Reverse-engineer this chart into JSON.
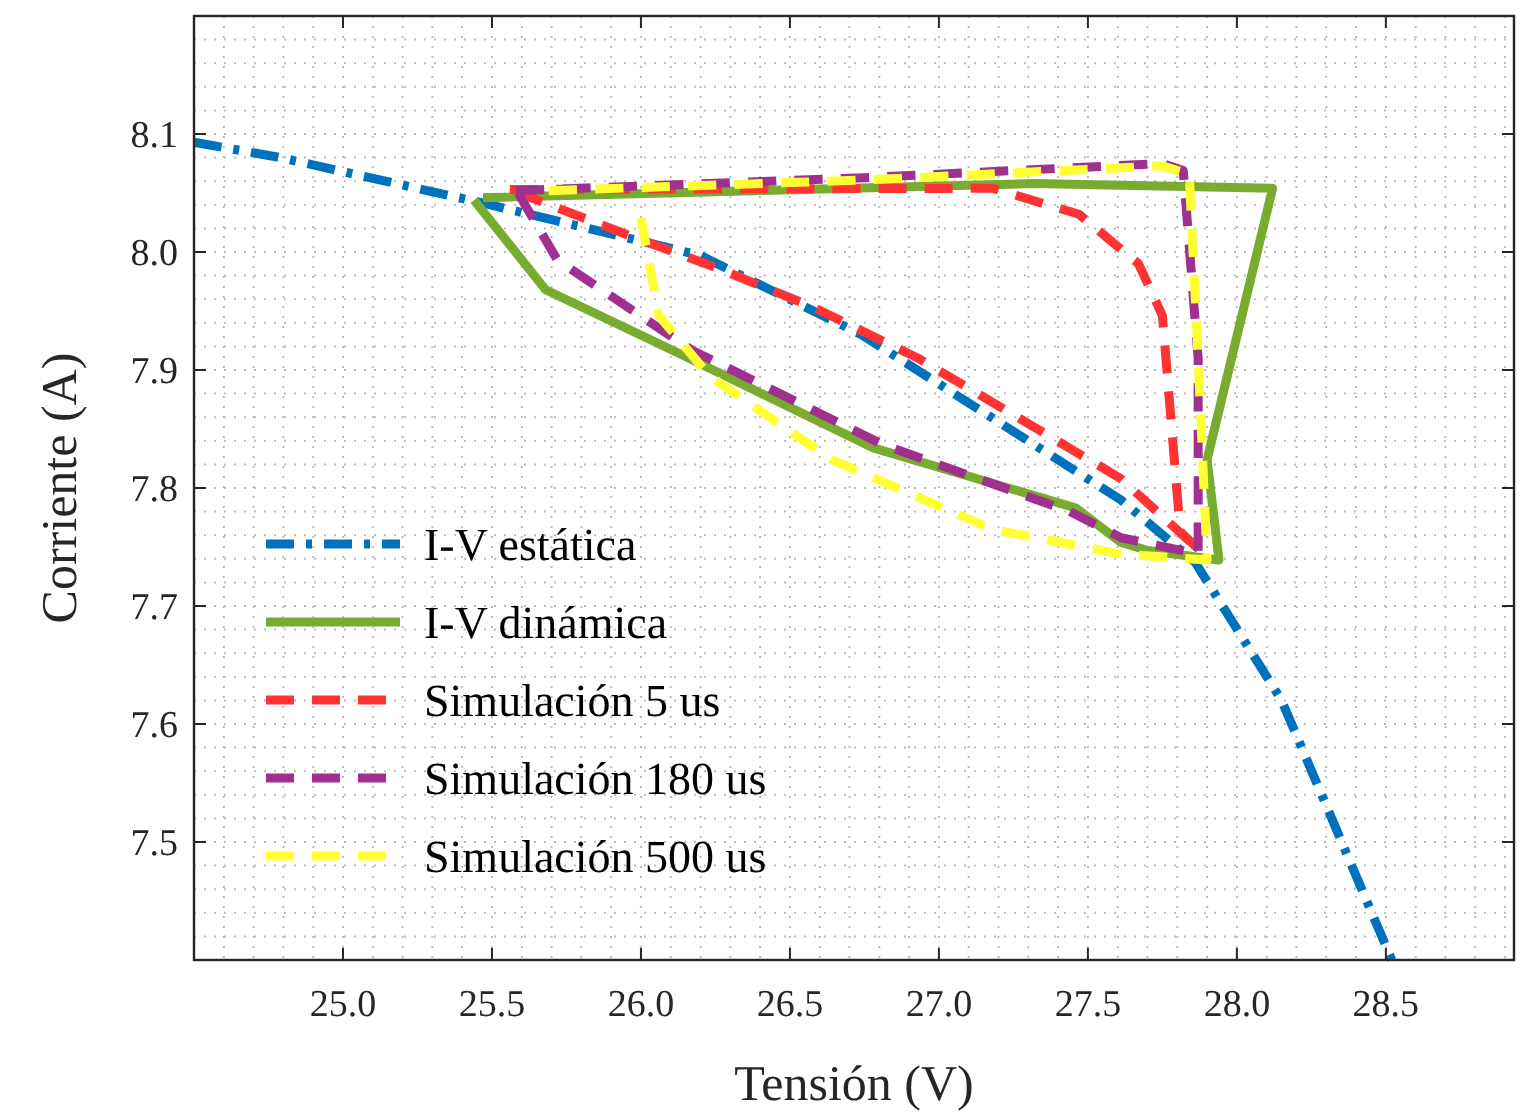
{
  "chart_data": {
    "type": "line",
    "xlabel": "Tensión (V)",
    "ylabel": "Corriente (A)",
    "xlim": [
      24.5,
      28.93
    ],
    "ylim": [
      7.4,
      8.2
    ],
    "xticks": [
      {
        "value": 25,
        "label": "25.0"
      },
      25.5,
      {
        "value": 26,
        "label": "26.0"
      },
      26.5,
      {
        "value": 27,
        "label": "27.0"
      },
      27.5,
      {
        "value": 28,
        "label": "28.0"
      },
      28.5
    ],
    "yticks": [
      7.5,
      7.6,
      7.7,
      7.8,
      7.9,
      {
        "value": 8,
        "label": "8.0"
      },
      8.1
    ],
    "grid": true,
    "legend": "bottom left",
    "series": [
      {
        "name": "I-V estática",
        "color": "#0072bd",
        "line_style": "dashdot",
        "x": [
          24.5,
          24.79,
          25.46,
          26.2,
          26.74,
          27.2,
          27.61,
          27.86,
          28.15,
          28.52
        ],
        "values": [
          8.093,
          8.08,
          8.042,
          7.997,
          7.93,
          7.856,
          7.79,
          7.737,
          7.62,
          7.4
        ]
      },
      {
        "name": "I-V dinámica",
        "color": "#77ac30",
        "line_style": "solid",
        "x": [
          25.44,
          25.68,
          26.12,
          26.78,
          27.46,
          27.61,
          27.7,
          27.94,
          27.9,
          28.12,
          27.32,
          25.47
        ],
        "values": [
          8.044,
          7.968,
          7.915,
          7.834,
          7.783,
          7.754,
          7.747,
          7.739,
          7.824,
          8.054,
          8.058,
          8.046
        ]
      },
      {
        "name": "Simulación 5 us",
        "color": "#ff3333",
        "line_style": "dashed",
        "x": [
          25.56,
          27.18,
          27.47,
          27.67,
          27.75,
          27.81,
          27.88,
          27.61,
          27.27,
          26.93,
          26.58,
          26.26,
          25.95,
          25.58
        ],
        "values": [
          8.053,
          8.054,
          8.032,
          7.99,
          7.946,
          7.763,
          7.746,
          7.808,
          7.859,
          7.91,
          7.953,
          7.986,
          8.015,
          8.051
        ]
      },
      {
        "name": "Simulación 180 us",
        "color": "#a0308f",
        "line_style": "dashed",
        "x": [
          25.59,
          25.72,
          26.17,
          26.81,
          27.44,
          27.61,
          27.87,
          27.87,
          27.82,
          27.75,
          26.75,
          25.58
        ],
        "values": [
          8.049,
          7.993,
          7.917,
          7.837,
          7.78,
          7.758,
          7.744,
          7.91,
          8.069,
          8.075,
          8.063,
          8.052
        ]
      },
      {
        "name": "Simulación 500 us",
        "color": "#ffff33",
        "line_style": "dashed",
        "x": [
          26.0,
          26.06,
          26.23,
          26.64,
          27.18,
          27.61,
          27.9,
          27.87,
          27.84,
          27.75,
          26.75,
          25.69
        ],
        "values": [
          8.029,
          7.946,
          7.895,
          7.824,
          7.765,
          7.744,
          7.739,
          7.91,
          8.066,
          8.073,
          8.061,
          8.052
        ]
      }
    ]
  }
}
